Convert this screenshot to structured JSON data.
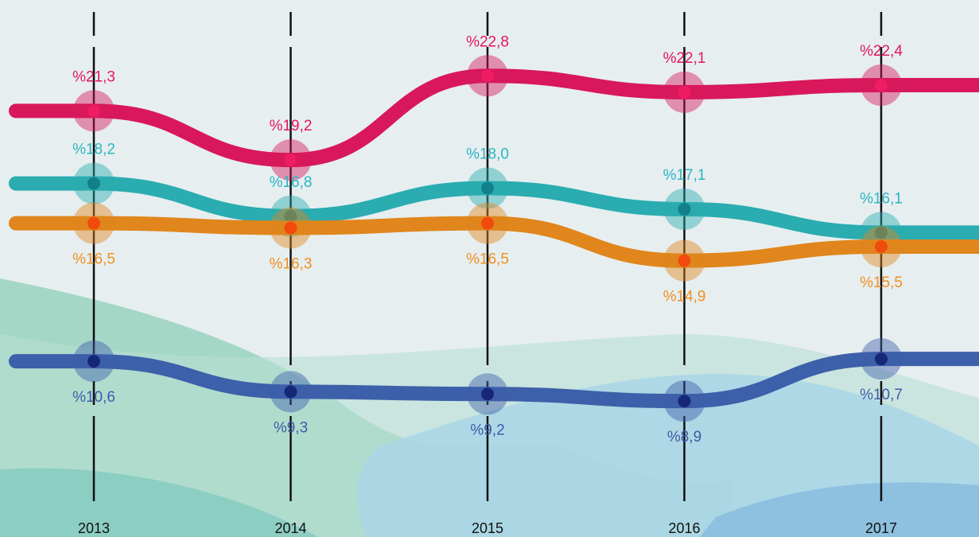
{
  "chart_data": {
    "type": "line",
    "categories": [
      "2013",
      "2014",
      "2015",
      "2016",
      "2017"
    ],
    "ylim": [
      7,
      24
    ],
    "series": [
      {
        "color": "#d8185a",
        "point_color": "#ee1c62",
        "label_color": "#e3175c",
        "values": [
          21.3,
          19.2,
          22.8,
          22.1,
          22.4
        ],
        "value_labels": [
          "%21,3",
          "%19,2",
          "%22,8",
          "%22,1",
          "%22,4"
        ]
      },
      {
        "color": "#2aacb0",
        "point_color": "#11808a",
        "label_color": "#2ab6c2",
        "values": [
          18.2,
          16.8,
          18.0,
          17.1,
          16.1
        ],
        "value_labels": [
          "%18,2",
          "%16,8",
          "%18,0",
          "%17,1",
          "%16,1"
        ]
      },
      {
        "color": "#e0861c",
        "point_color": "#f04b0c",
        "label_color": "#f0901e",
        "values": [
          16.5,
          16.3,
          16.5,
          14.9,
          15.5
        ],
        "value_labels": [
          "%16,5",
          "%16,3",
          "%16,5",
          "%14,9",
          "%15,5"
        ]
      },
      {
        "color": "#3d60aa",
        "point_color": "#16277a",
        "label_color": "#3d5ca8",
        "values": [
          10.6,
          9.3,
          9.2,
          8.9,
          10.7
        ],
        "value_labels": [
          "%10,6",
          "%9,3",
          "%9,2",
          "%8,9",
          "%10,7"
        ]
      }
    ]
  }
}
